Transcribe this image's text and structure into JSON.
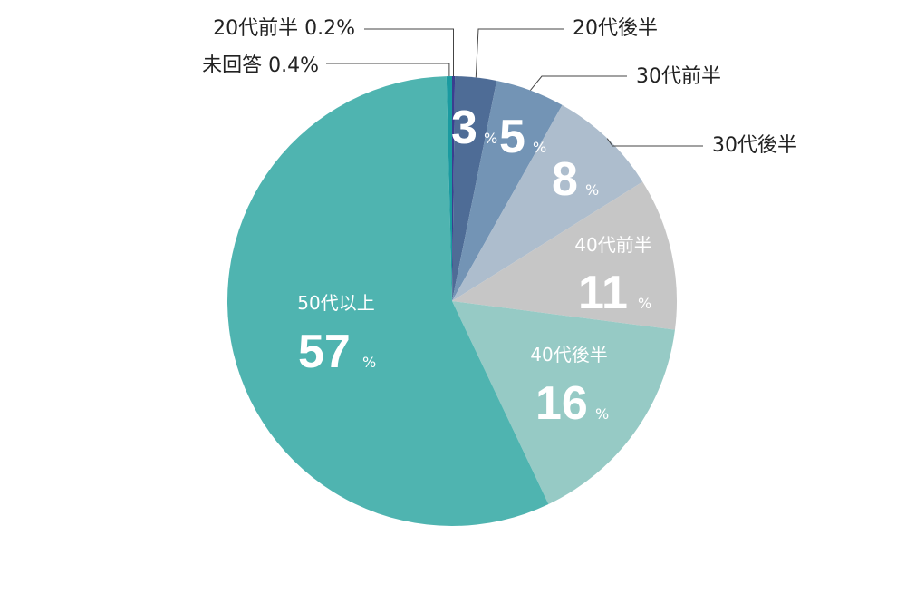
{
  "chart_data": {
    "type": "pie",
    "start": "top",
    "direction": "clockwise",
    "slices": [
      {
        "label": "20代前半",
        "value": 0.2,
        "value_text": "0.2%",
        "color": "#3a3f8f"
      },
      {
        "label": "20代後半",
        "value": 3,
        "value_text": "3",
        "unit": "%",
        "color": "#4e6c96"
      },
      {
        "label": "30代前半",
        "value": 5,
        "value_text": "5",
        "unit": "%",
        "color": "#7394b5"
      },
      {
        "label": "30代後半",
        "value": 8,
        "value_text": "8",
        "unit": "%",
        "color": "#adbdcd"
      },
      {
        "label": "40代前半",
        "value": 11,
        "value_text": "11",
        "unit": "%",
        "color": "#c6c6c6"
      },
      {
        "label": "40代後半",
        "value": 16,
        "value_text": "16",
        "unit": "%",
        "color": "#96cac5"
      },
      {
        "label": "50代以上",
        "value": 57,
        "value_text": "57",
        "unit": "%",
        "color": "#4fb4b0"
      },
      {
        "label": "未回答",
        "value": 0.4,
        "value_text": "0.4%",
        "color": "#1a9aa0"
      }
    ]
  }
}
